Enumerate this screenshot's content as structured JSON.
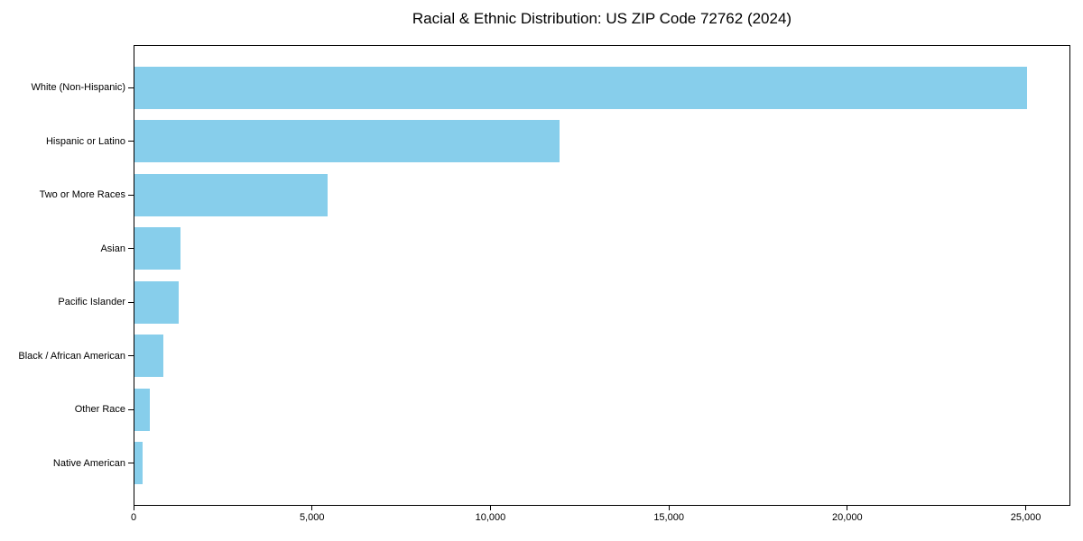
{
  "chart_data": {
    "type": "bar",
    "orientation": "horizontal",
    "title": "Racial & Ethnic Distribution: US ZIP Code 72762 (2024)",
    "categories": [
      "White (Non-Hispanic)",
      "Hispanic or Latino",
      "Two or More Races",
      "Asian",
      "Pacific Islander",
      "Black / African American",
      "Other Race",
      "Native American"
    ],
    "values": [
      25000,
      11900,
      5400,
      1300,
      1250,
      800,
      430,
      240
    ],
    "xlabel": "",
    "ylabel": "",
    "xlim": [
      0,
      26250
    ],
    "x_tick_values": [
      0,
      5000,
      10000,
      15000,
      20000,
      25000
    ],
    "x_tick_labels": [
      "0",
      "5,000",
      "10,000",
      "15,000",
      "20,000",
      "25,000"
    ],
    "grid": false,
    "legend_position": "none",
    "bar_color": "#87CEEB",
    "axis_color": "#000000",
    "text_color": "#000000",
    "background_color": "#ffffff"
  }
}
